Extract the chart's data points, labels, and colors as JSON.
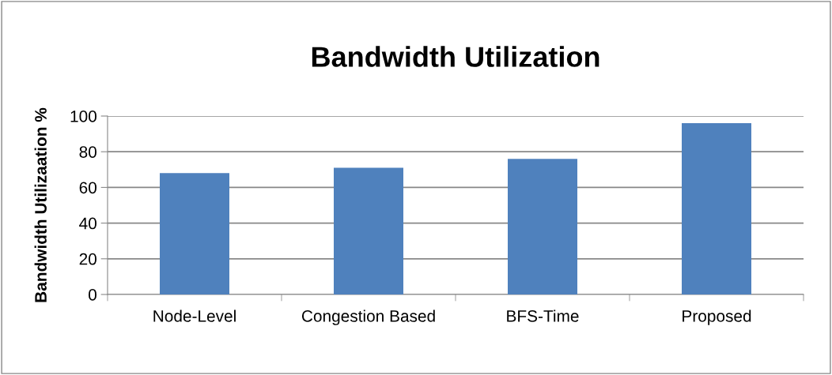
{
  "chart_data": {
    "type": "bar",
    "title": "Bandwidth Utilization",
    "ylabel": "Bandwidth Utilizaation %",
    "categories": [
      "Node-Level",
      "Congestion Based",
      "BFS-Time",
      "Proposed"
    ],
    "values": [
      68,
      71,
      76,
      96
    ],
    "color": "#4f81bd",
    "ylim": [
      0,
      100
    ],
    "yticks": [
      0,
      20,
      40,
      60,
      80,
      100
    ],
    "grid": "y",
    "legend": false
  }
}
